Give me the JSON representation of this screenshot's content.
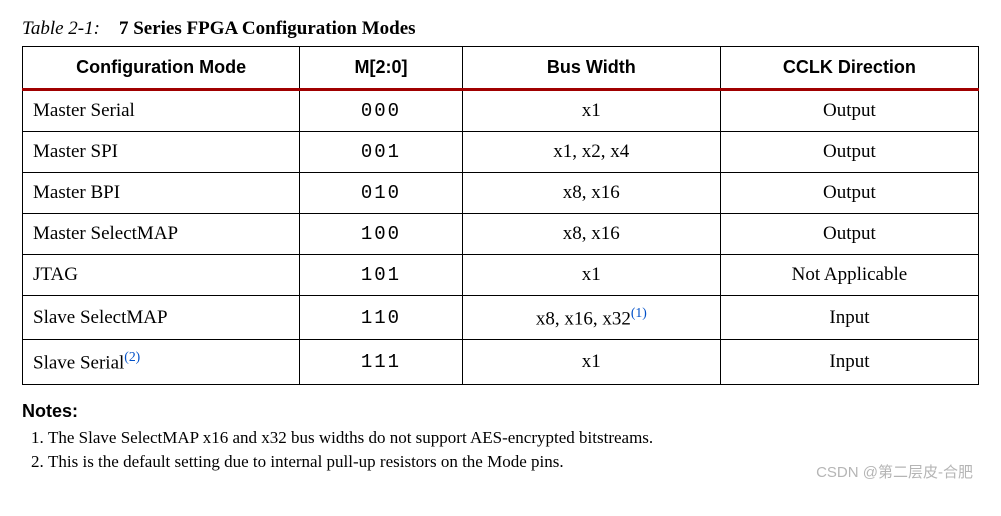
{
  "caption": {
    "label": "Table 2-1:",
    "title": "7 Series FPGA Configuration Modes"
  },
  "table": {
    "columns": [
      "Configuration Mode",
      "M[2:0]",
      "Bus Width",
      "CCLK Direction"
    ],
    "col_widths_pct": [
      29,
      17,
      27,
      27
    ],
    "header_rule_color": "#a00000",
    "rows": [
      {
        "mode": "Master Serial",
        "mode_note": "",
        "bits": "000",
        "bus": "x1",
        "bus_note": "",
        "cclk": "Output"
      },
      {
        "mode": "Master SPI",
        "mode_note": "",
        "bits": "001",
        "bus": "x1, x2, x4",
        "bus_note": "",
        "cclk": "Output"
      },
      {
        "mode": "Master BPI",
        "mode_note": "",
        "bits": "010",
        "bus": "x8, x16",
        "bus_note": "",
        "cclk": "Output"
      },
      {
        "mode": "Master SelectMAP",
        "mode_note": "",
        "bits": "100",
        "bus": "x8, x16",
        "bus_note": "",
        "cclk": "Output"
      },
      {
        "mode": "JTAG",
        "mode_note": "",
        "bits": "101",
        "bus": "x1",
        "bus_note": "",
        "cclk": "Not Applicable"
      },
      {
        "mode": "Slave SelectMAP",
        "mode_note": "",
        "bits": "110",
        "bus": "x8, x16, x32",
        "bus_note": "(1)",
        "cclk": "Input"
      },
      {
        "mode": "Slave Serial",
        "mode_note": "(2)",
        "bits": "111",
        "bus": "x1",
        "bus_note": "",
        "cclk": "Input"
      }
    ]
  },
  "notes": {
    "heading": "Notes:",
    "items": [
      "The Slave SelectMAP x16 and x32 bus widths do not support AES-encrypted bitstreams.",
      "This is the default setting due to internal pull-up resistors on the Mode pins."
    ]
  },
  "watermark": "CSDN @第二层皮-合肥"
}
